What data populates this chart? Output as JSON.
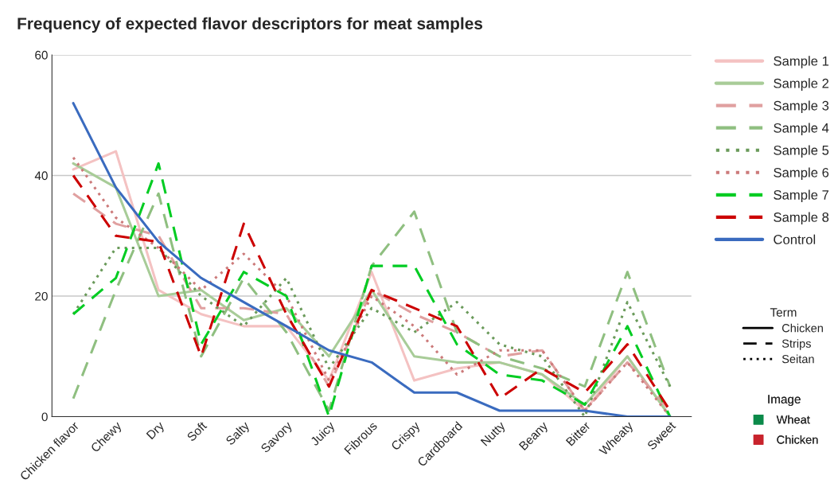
{
  "chart_data": {
    "type": "line",
    "title": "Frequency of expected flavor descriptors for meat samples",
    "categories": [
      "Chicken flavor",
      "Chewy",
      "Dry",
      "Soft",
      "Salty",
      "Savory",
      "Juicy",
      "Fibrous",
      "Crispy",
      "Cardboard",
      "Nutty",
      "Beany",
      "Bitter",
      "Wheaty",
      "Sweet"
    ],
    "series": [
      {
        "name": "Sample 1",
        "color": "#f4c2c2",
        "line_style": "solid",
        "values": [
          41,
          44,
          21,
          17,
          15,
          15,
          6,
          24,
          6,
          8,
          9,
          7,
          1,
          10,
          0
        ]
      },
      {
        "name": "Sample 2",
        "color": "#a8cc98",
        "line_style": "solid",
        "values": [
          42,
          38,
          20,
          21,
          16,
          18,
          10,
          21,
          10,
          9,
          9,
          7,
          2,
          10,
          0
        ]
      },
      {
        "name": "Sample 3",
        "color": "#e0a0a0",
        "line_style": "dashed",
        "values": [
          37,
          32,
          30,
          18,
          18,
          17,
          5,
          21,
          17,
          14,
          10,
          11,
          1,
          9,
          1
        ]
      },
      {
        "name": "Sample 4",
        "color": "#8fbf80",
        "line_style": "dashed",
        "values": [
          3,
          21,
          37,
          10,
          23,
          14,
          1,
          25,
          34,
          14,
          10,
          8,
          5,
          24,
          5
        ]
      },
      {
        "name": "Sample 5",
        "color": "#6a9a5a",
        "line_style": "dotted",
        "values": [
          17,
          28,
          28,
          20,
          15,
          23,
          8,
          18,
          14,
          19,
          12,
          10,
          0,
          19,
          5
        ]
      },
      {
        "name": "Sample 6",
        "color": "#cc7a7a",
        "line_style": "dotted",
        "values": [
          43,
          33,
          28,
          21,
          27,
          20,
          6,
          20,
          15,
          7,
          11,
          11,
          1,
          9,
          0
        ]
      },
      {
        "name": "Sample 7",
        "color": "#00cc22",
        "line_style": "dashed",
        "values": [
          17,
          23,
          42,
          12,
          24,
          20,
          0,
          25,
          25,
          12,
          7,
          6,
          2,
          15,
          0
        ]
      },
      {
        "name": "Sample 8",
        "color": "#cc0000",
        "line_style": "dashed",
        "values": [
          40,
          30,
          29,
          10,
          32,
          17,
          5,
          21,
          18,
          15,
          3,
          8,
          4,
          12,
          1
        ]
      },
      {
        "name": "Control",
        "color": "#3a6bbf",
        "line_style": "solid",
        "values": [
          52,
          38,
          29,
          23,
          19,
          15,
          11,
          9,
          4,
          4,
          1,
          1,
          1,
          0,
          0
        ]
      }
    ],
    "ylim": [
      0,
      60
    ],
    "yticks": [
      0,
      20,
      40,
      60
    ],
    "grid": "y",
    "legend": "top right",
    "marker": "none",
    "annotations": [
      "Term",
      "Chicken",
      "Strips",
      "Seitan",
      "Image",
      "Wheat",
      "Chicken"
    ]
  }
}
